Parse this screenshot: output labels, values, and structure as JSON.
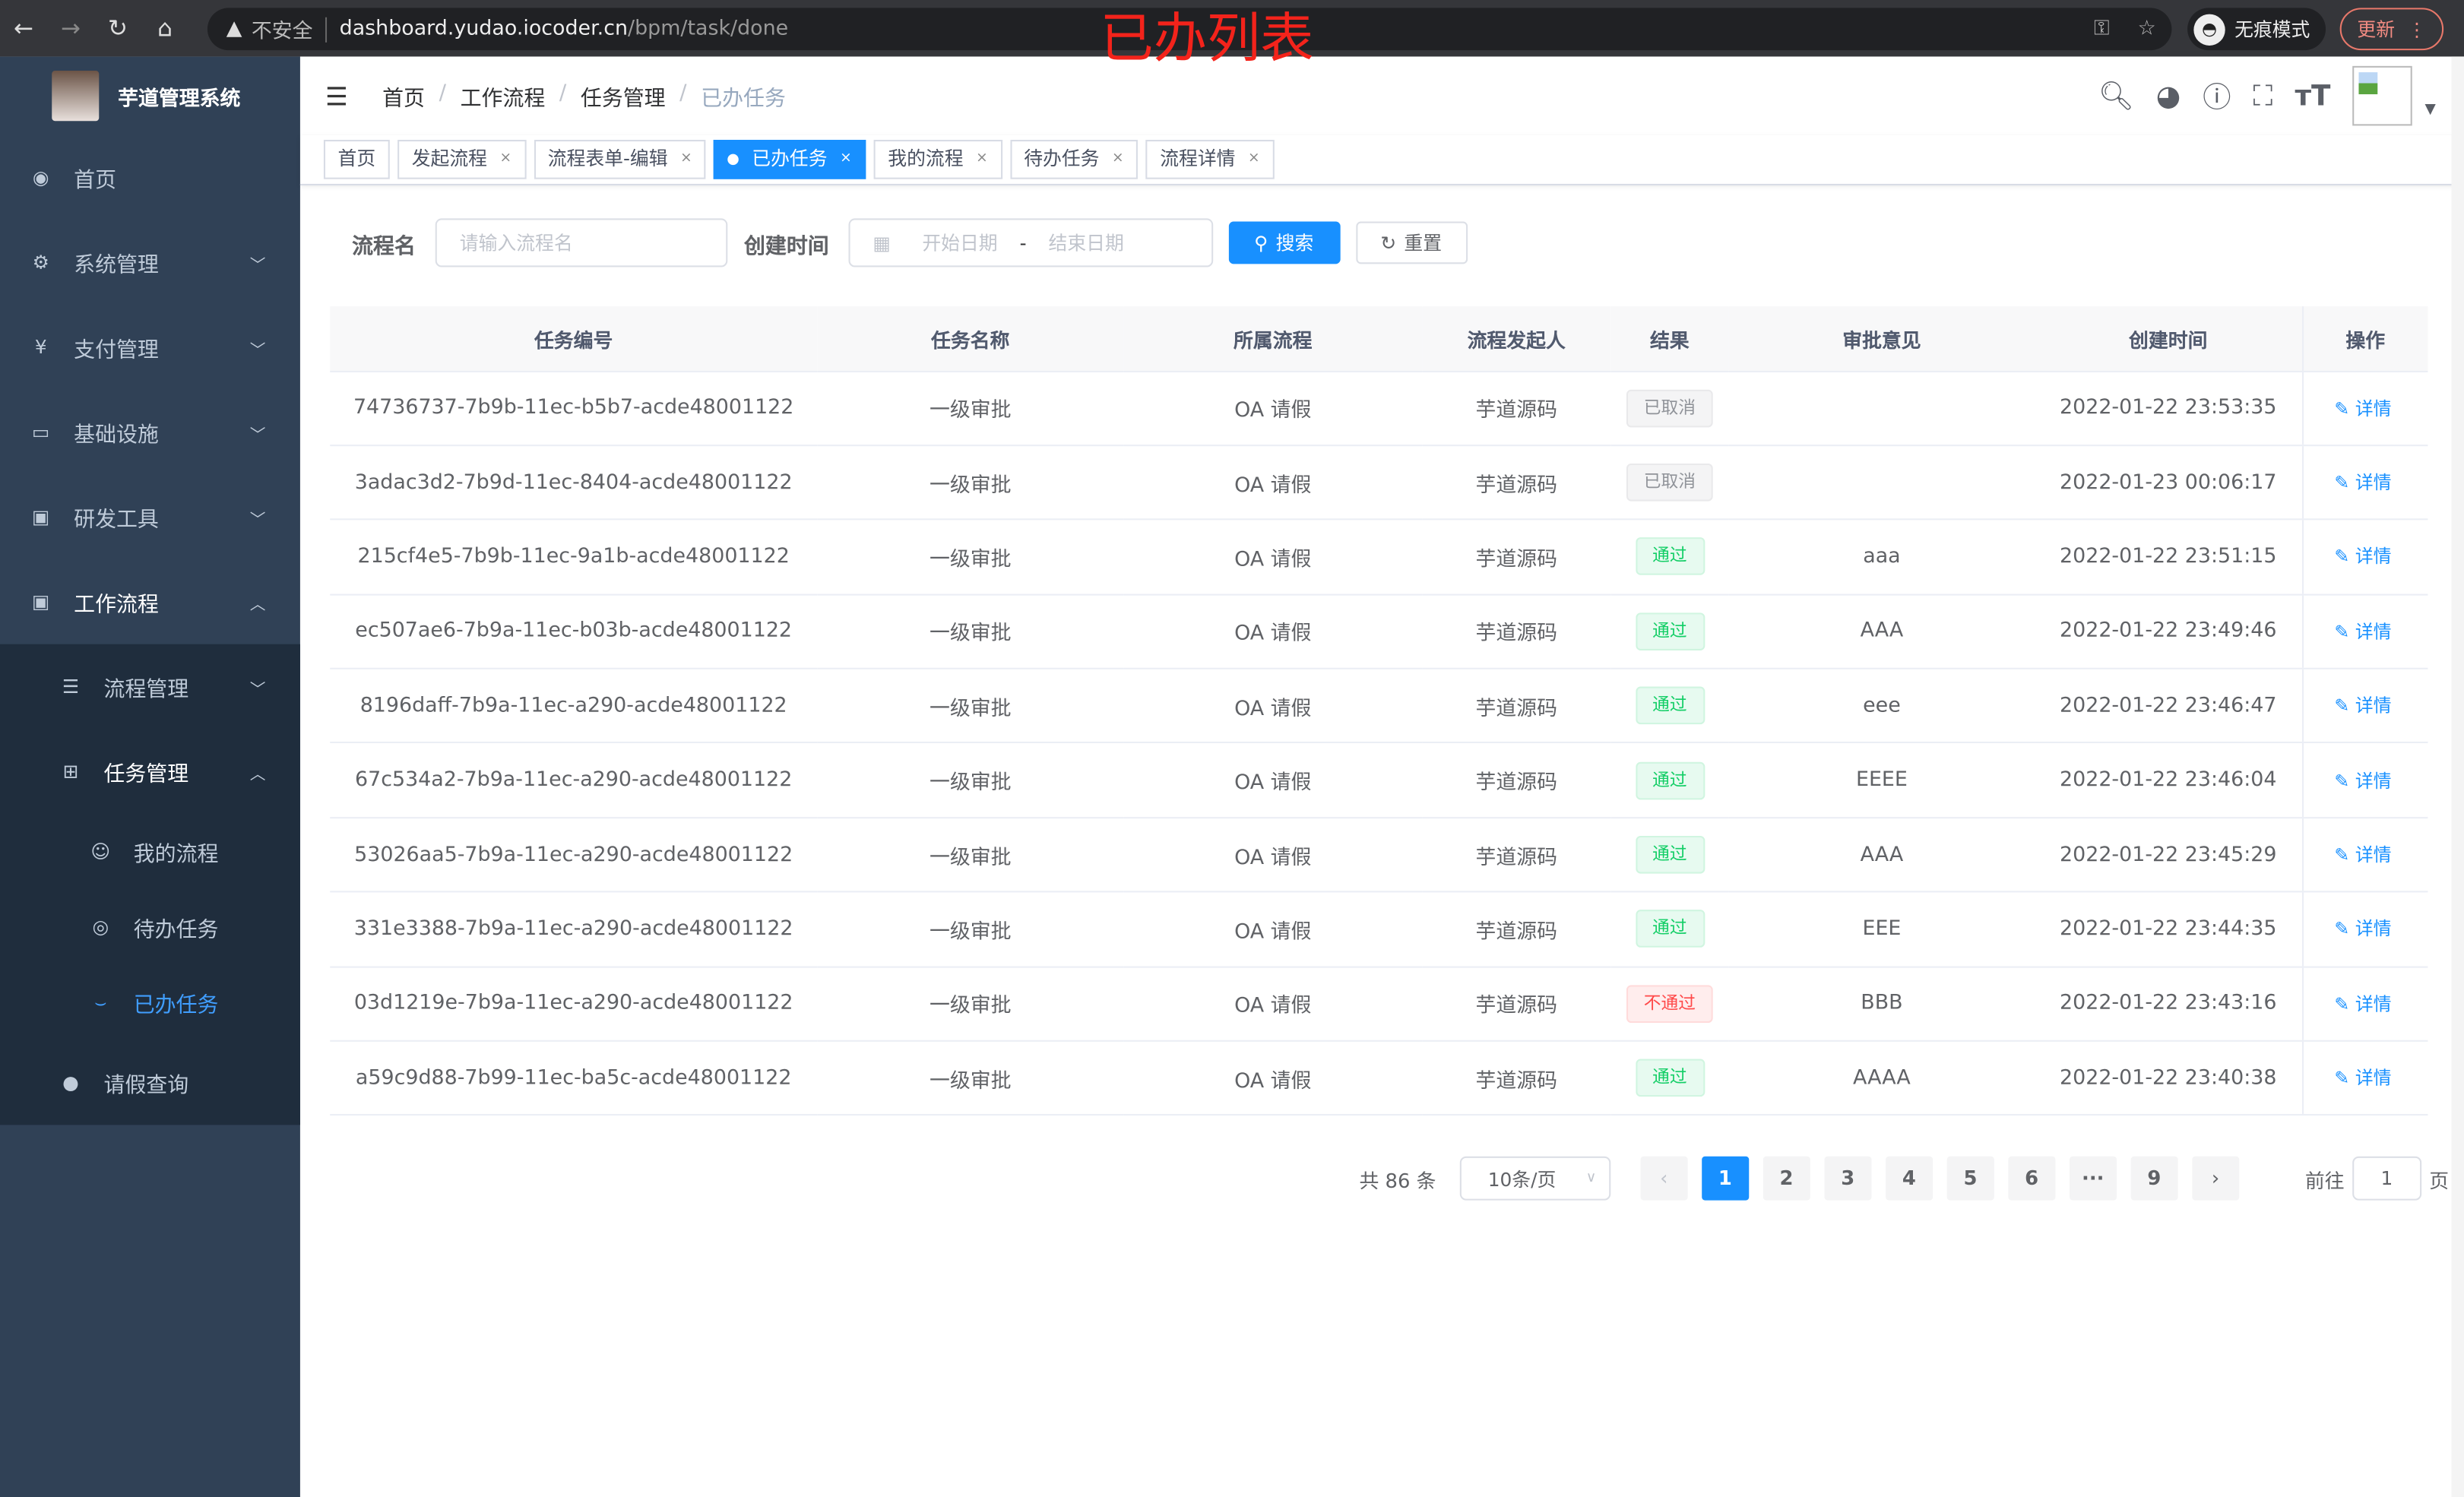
{
  "browser": {
    "security": "不安全",
    "url_host": "dashboard.yudao.iocoder.cn",
    "url_path": "/bpm/task/done",
    "incognito": "无痕模式",
    "update": "更新"
  },
  "annotation": "已办列表",
  "app": {
    "title": "芋道管理系统"
  },
  "sidebar": {
    "items": [
      {
        "label": "首页",
        "icon": "dashboard-icon"
      },
      {
        "label": "系统管理",
        "icon": "gear-icon"
      },
      {
        "label": "支付管理",
        "icon": "yen-icon"
      },
      {
        "label": "基础设施",
        "icon": "monitor-icon"
      },
      {
        "label": "研发工具",
        "icon": "toolbox-icon"
      },
      {
        "label": "工作流程",
        "icon": "toolbox-icon"
      }
    ],
    "workflow_children": [
      {
        "label": "流程管理"
      },
      {
        "label": "任务管理"
      }
    ],
    "task_children": [
      {
        "label": "我的流程"
      },
      {
        "label": "待办任务"
      },
      {
        "label": "已办任务",
        "active": true
      }
    ],
    "leave": {
      "label": "请假查询"
    }
  },
  "breadcrumb": [
    "首页",
    "工作流程",
    "任务管理",
    "已办任务"
  ],
  "tags": [
    {
      "label": "首页"
    },
    {
      "label": "发起流程"
    },
    {
      "label": "流程表单-编辑"
    },
    {
      "label": "已办任务",
      "active": true
    },
    {
      "label": "我的流程"
    },
    {
      "label": "待办任务"
    },
    {
      "label": "流程详情"
    }
  ],
  "filter": {
    "name_label": "流程名",
    "name_placeholder": "请输入流程名",
    "time_label": "创建时间",
    "start_placeholder": "开始日期",
    "end_placeholder": "结束日期",
    "range_sep": "-",
    "search": "搜索",
    "reset": "重置"
  },
  "table": {
    "headers": [
      "任务编号",
      "任务名称",
      "所属流程",
      "流程发起人",
      "结果",
      "审批意见",
      "创建时间",
      "操作"
    ],
    "rows": [
      {
        "id": "74736737-7b9b-11ec-b5b7-acde48001122",
        "name": "一级审批",
        "process": "OA 请假",
        "starter": "芋道源码",
        "result": "已取消",
        "status": "cancel",
        "comment": "",
        "time": "2022-01-22 23:53:35",
        "op": "详情"
      },
      {
        "id": "3adac3d2-7b9d-11ec-8404-acde48001122",
        "name": "一级审批",
        "process": "OA 请假",
        "starter": "芋道源码",
        "result": "已取消",
        "status": "cancel",
        "comment": "",
        "time": "2022-01-23 00:06:17",
        "op": "详情"
      },
      {
        "id": "215cf4e5-7b9b-11ec-9a1b-acde48001122",
        "name": "一级审批",
        "process": "OA 请假",
        "starter": "芋道源码",
        "result": "通过",
        "status": "pass",
        "comment": "aaa",
        "time": "2022-01-22 23:51:15",
        "op": "详情"
      },
      {
        "id": "ec507ae6-7b9a-11ec-b03b-acde48001122",
        "name": "一级审批",
        "process": "OA 请假",
        "starter": "芋道源码",
        "result": "通过",
        "status": "pass",
        "comment": "AAA",
        "time": "2022-01-22 23:49:46",
        "op": "详情"
      },
      {
        "id": "8196daff-7b9a-11ec-a290-acde48001122",
        "name": "一级审批",
        "process": "OA 请假",
        "starter": "芋道源码",
        "result": "通过",
        "status": "pass",
        "comment": "eee",
        "time": "2022-01-22 23:46:47",
        "op": "详情"
      },
      {
        "id": "67c534a2-7b9a-11ec-a290-acde48001122",
        "name": "一级审批",
        "process": "OA 请假",
        "starter": "芋道源码",
        "result": "通过",
        "status": "pass",
        "comment": "EEEE",
        "time": "2022-01-22 23:46:04",
        "op": "详情"
      },
      {
        "id": "53026aa5-7b9a-11ec-a290-acde48001122",
        "name": "一级审批",
        "process": "OA 请假",
        "starter": "芋道源码",
        "result": "通过",
        "status": "pass",
        "comment": "AAA",
        "time": "2022-01-22 23:45:29",
        "op": "详情"
      },
      {
        "id": "331e3388-7b9a-11ec-a290-acde48001122",
        "name": "一级审批",
        "process": "OA 请假",
        "starter": "芋道源码",
        "result": "通过",
        "status": "pass",
        "comment": "EEE",
        "time": "2022-01-22 23:44:35",
        "op": "详情"
      },
      {
        "id": "03d1219e-7b9a-11ec-a290-acde48001122",
        "name": "一级审批",
        "process": "OA 请假",
        "starter": "芋道源码",
        "result": "不通过",
        "status": "reject",
        "comment": "BBB",
        "time": "2022-01-22 23:43:16",
        "op": "详情"
      },
      {
        "id": "a59c9d88-7b99-11ec-ba5c-acde48001122",
        "name": "一级审批",
        "process": "OA 请假",
        "starter": "芋道源码",
        "result": "通过",
        "status": "pass",
        "comment": "AAAA",
        "time": "2022-01-22 23:40:38",
        "op": "详情"
      }
    ]
  },
  "pagination": {
    "total": "共 86 条",
    "page_size": "10条/页",
    "pages": [
      "1",
      "2",
      "3",
      "4",
      "5",
      "6",
      "···",
      "9"
    ],
    "current": "1",
    "goto_label": "前往",
    "goto_value": "1",
    "goto_suffix": "页"
  },
  "colors": {
    "primary": "#1890ff",
    "sidebar": "#304156",
    "submenu": "#1f2d3d"
  }
}
